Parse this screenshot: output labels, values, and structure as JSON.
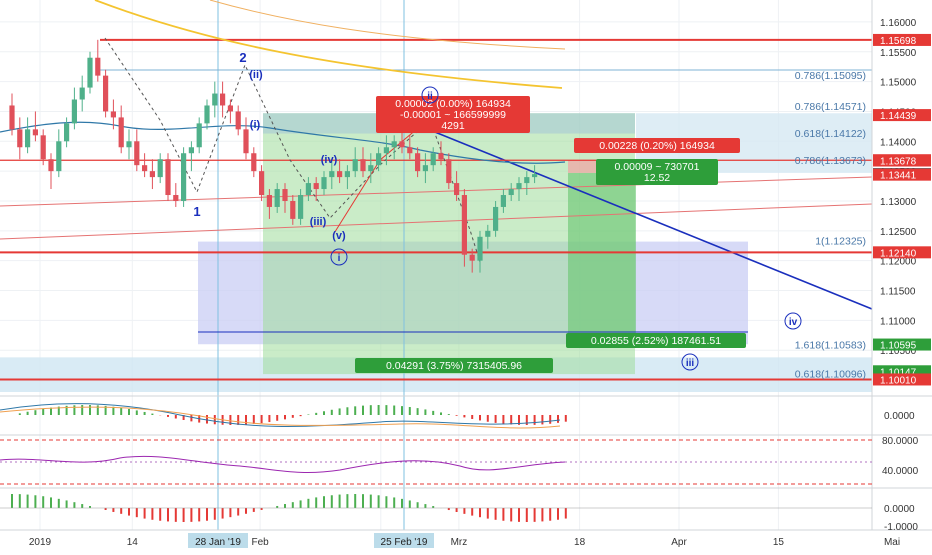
{
  "chart_data": {
    "type": "candlestick",
    "symbol": "EURUSD",
    "price_axis": {
      "min": 1.098,
      "max": 1.163,
      "ticks": [
        "1.16000",
        "1.15500",
        "1.15000",
        "1.14500",
        "1.14000",
        "1.13500",
        "1.13000",
        "1.12500",
        "1.12000",
        "1.11500",
        "1.11000",
        "1.10500",
        "1.10000"
      ]
    },
    "time_axis": {
      "ticks": [
        {
          "label": "2019",
          "day": 0
        },
        {
          "label": "14",
          "day": 13
        },
        {
          "label": "Feb",
          "day": 31
        },
        {
          "label": "18",
          "day": 48
        },
        {
          "label": "Mrz",
          "day": 59
        },
        {
          "label": "18",
          "day": 76
        },
        {
          "label": "Apr",
          "day": 90
        },
        {
          "label": "15",
          "day": 104
        },
        {
          "label": "Mai",
          "day": 120
        }
      ],
      "highlighted": [
        {
          "label": "28 Jan '19",
          "day": 27
        },
        {
          "label": "25 Feb '19",
          "day": 55
        }
      ]
    },
    "candles": [
      [
        1.146,
        1.148,
        1.141,
        1.142
      ],
      [
        1.142,
        1.144,
        1.137,
        1.139
      ],
      [
        1.139,
        1.144,
        1.138,
        1.142
      ],
      [
        1.142,
        1.145,
        1.14,
        1.141
      ],
      [
        1.141,
        1.142,
        1.136,
        1.137
      ],
      [
        1.137,
        1.138,
        1.132,
        1.135
      ],
      [
        1.135,
        1.142,
        1.134,
        1.14
      ],
      [
        1.14,
        1.144,
        1.139,
        1.143
      ],
      [
        1.143,
        1.149,
        1.142,
        1.147
      ],
      [
        1.147,
        1.151,
        1.145,
        1.149
      ],
      [
        1.149,
        1.155,
        1.148,
        1.154
      ],
      [
        1.154,
        1.157,
        1.15,
        1.151
      ],
      [
        1.151,
        1.152,
        1.144,
        1.145
      ],
      [
        1.145,
        1.147,
        1.142,
        1.144
      ],
      [
        1.144,
        1.146,
        1.138,
        1.139
      ],
      [
        1.139,
        1.142,
        1.137,
        1.14
      ],
      [
        1.14,
        1.142,
        1.135,
        1.136
      ],
      [
        1.136,
        1.138,
        1.134,
        1.135
      ],
      [
        1.135,
        1.137,
        1.132,
        1.134
      ],
      [
        1.134,
        1.138,
        1.133,
        1.137
      ],
      [
        1.137,
        1.138,
        1.13,
        1.131
      ],
      [
        1.131,
        1.133,
        1.129,
        1.13
      ],
      [
        1.13,
        1.139,
        1.129,
        1.138
      ],
      [
        1.138,
        1.14,
        1.135,
        1.139
      ],
      [
        1.139,
        1.144,
        1.138,
        1.143
      ],
      [
        1.143,
        1.147,
        1.142,
        1.146
      ],
      [
        1.146,
        1.15,
        1.144,
        1.148
      ],
      [
        1.148,
        1.15,
        1.144,
        1.146
      ],
      [
        1.146,
        1.147,
        1.143,
        1.145
      ],
      [
        1.145,
        1.146,
        1.141,
        1.142
      ],
      [
        1.142,
        1.144,
        1.137,
        1.138
      ],
      [
        1.138,
        1.139,
        1.134,
        1.135
      ],
      [
        1.135,
        1.136,
        1.13,
        1.131
      ],
      [
        1.131,
        1.132,
        1.127,
        1.129
      ],
      [
        1.129,
        1.133,
        1.128,
        1.132
      ],
      [
        1.132,
        1.133,
        1.128,
        1.13
      ],
      [
        1.13,
        1.131,
        1.126,
        1.127
      ],
      [
        1.127,
        1.132,
        1.126,
        1.131
      ],
      [
        1.131,
        1.134,
        1.13,
        1.133
      ],
      [
        1.133,
        1.134,
        1.13,
        1.132
      ],
      [
        1.132,
        1.135,
        1.131,
        1.134
      ],
      [
        1.134,
        1.137,
        1.132,
        1.135
      ],
      [
        1.135,
        1.137,
        1.133,
        1.134
      ],
      [
        1.134,
        1.136,
        1.132,
        1.135
      ],
      [
        1.135,
        1.139,
        1.134,
        1.137
      ],
      [
        1.137,
        1.139,
        1.134,
        1.135
      ],
      [
        1.135,
        1.138,
        1.133,
        1.136
      ],
      [
        1.136,
        1.139,
        1.135,
        1.138
      ],
      [
        1.138,
        1.141,
        1.136,
        1.139
      ],
      [
        1.139,
        1.141,
        1.137,
        1.14
      ],
      [
        1.14,
        1.142,
        1.138,
        1.139
      ],
      [
        1.139,
        1.141,
        1.137,
        1.138
      ],
      [
        1.138,
        1.139,
        1.134,
        1.135
      ],
      [
        1.135,
        1.138,
        1.133,
        1.136
      ],
      [
        1.136,
        1.139,
        1.135,
        1.138
      ],
      [
        1.138,
        1.14,
        1.136,
        1.137
      ],
      [
        1.137,
        1.138,
        1.132,
        1.133
      ],
      [
        1.133,
        1.135,
        1.13,
        1.131
      ],
      [
        1.131,
        1.132,
        1.119,
        1.121
      ],
      [
        1.121,
        1.122,
        1.118,
        1.12
      ],
      [
        1.12,
        1.125,
        1.118,
        1.124
      ],
      [
        1.124,
        1.126,
        1.122,
        1.125
      ],
      [
        1.125,
        1.13,
        1.124,
        1.129
      ],
      [
        1.129,
        1.132,
        1.128,
        1.131
      ],
      [
        1.131,
        1.133,
        1.13,
        1.132
      ],
      [
        1.132,
        1.134,
        1.13,
        1.133
      ],
      [
        1.133,
        1.135,
        1.131,
        1.134
      ],
      [
        1.134,
        1.136,
        1.133,
        1.1345
      ]
    ],
    "horizontal_lines": [
      {
        "price": 1.15698,
        "color": "#e53935",
        "label": "1.15698"
      },
      {
        "price": 1.1214,
        "color": "#e53935",
        "label": "1.12140"
      },
      {
        "price": 1.1001,
        "color": "#e53935",
        "label": "1.10010"
      },
      {
        "price": 1.13683,
        "color": "#e53935",
        "label": "1.13683"
      }
    ],
    "fib_levels": [
      {
        "text": "0.786(1.15095)",
        "price": 1.15095
      },
      {
        "text": "0.786(1.14571)",
        "price": 1.14571
      },
      {
        "text": "0.618(1.14122)",
        "price": 1.14122
      },
      {
        "text": "0.786(1.13673)",
        "price": 1.13673
      },
      {
        "text": "1(1.12325)",
        "price": 1.12325
      },
      {
        "text": "1.618(1.10583)",
        "price": 1.10583
      },
      {
        "text": "0.618(1.10096)",
        "price": 1.10096
      }
    ],
    "price_labels": [
      {
        "text": "1.15698",
        "price": 1.15698,
        "color": "#e53935"
      },
      {
        "text": "1.14439",
        "price": 1.14439,
        "color": "#e53935"
      },
      {
        "text": "1.13683",
        "price": 1.13683,
        "color": "#e53935"
      },
      {
        "text": "1.13678",
        "price": 1.13678,
        "color": "#e53935"
      },
      {
        "text": "1.13450",
        "price": 1.1345,
        "color": "#37474f"
      },
      {
        "text": "1.13441",
        "price": 1.13441,
        "color": "#e53935"
      },
      {
        "text": "1.12140",
        "price": 1.1214,
        "color": "#e53935"
      },
      {
        "text": "1.10595",
        "price": 1.10595,
        "color": "#2e9e3a"
      },
      {
        "text": "1.10147",
        "price": 1.10147,
        "color": "#2e9e3a"
      },
      {
        "text": "1.10010",
        "price": 1.1001,
        "color": "#e53935"
      }
    ],
    "measure_boxes": [
      {
        "lines": [
          "0.00002 (0.00%) 164934",
          "-0.00001 ~ 166599999",
          "4291"
        ],
        "color": "#e53935"
      },
      {
        "lines": [
          "0.00228 (0.20%) 164934"
        ],
        "color": "#e53935"
      },
      {
        "lines": [
          "0.00009 ~ 730701",
          "12.52"
        ],
        "color": "#2e9e3a"
      },
      {
        "lines": [
          "0.02855 (2.52%) 187461.51"
        ],
        "color": "#2e9e3a"
      },
      {
        "lines": [
          "0.04291 (3.75%) 7315405.96"
        ],
        "color": "#2e9e3a"
      }
    ],
    "wave_labels": [
      "1",
      "2",
      "(ii)",
      "(i)",
      "(iv)",
      "(iii)",
      "(v)",
      "i",
      "ii",
      "iv",
      "iii"
    ],
    "macd_axis": [
      "0.0000"
    ],
    "rsi_axis": [
      "80.0000",
      "40.0000"
    ],
    "osc_axis": [
      "0.0000",
      "-1.0000"
    ]
  }
}
